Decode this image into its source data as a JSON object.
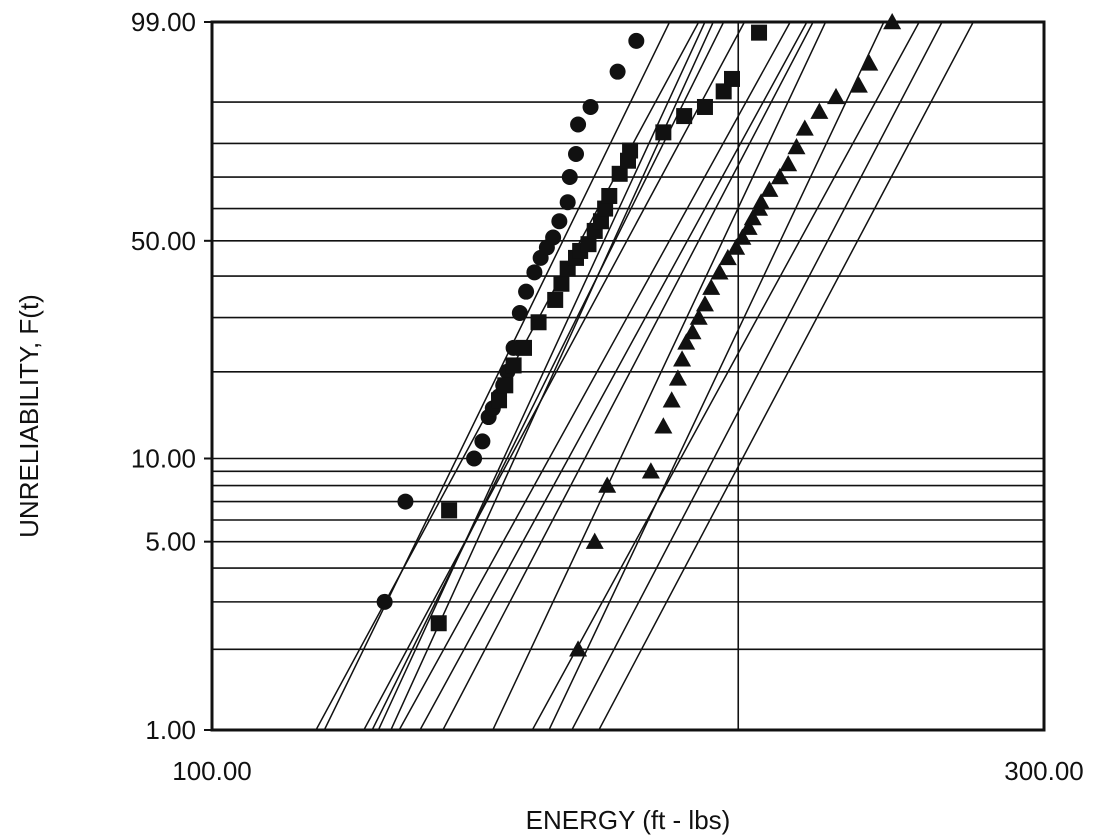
{
  "chart_data": {
    "type": "scatter",
    "title": "",
    "xlabel": "ENERGY (ft - lbs)",
    "ylabel": "UNRELIABILITY, F(t)",
    "x_scale": "linear",
    "y_scale": "weibull probability",
    "xlim": [
      100,
      300
    ],
    "ylim": [
      1,
      99
    ],
    "x_ticks": [
      {
        "value": 100,
        "label": "100.00"
      },
      {
        "value": 300,
        "label": "300.00"
      }
    ],
    "y_ticks": [
      {
        "value": 99,
        "label": "99.00"
      },
      {
        "value": 50,
        "label": "50.00"
      },
      {
        "value": 10,
        "label": "10.00"
      },
      {
        "value": 5,
        "label": "5.00"
      },
      {
        "value": 1,
        "label": "1.00"
      }
    ],
    "grid": {
      "y_values": [
        2,
        3,
        4,
        5,
        6,
        7,
        8,
        9,
        10,
        20,
        30,
        40,
        50,
        60,
        70,
        80,
        90
      ],
      "x_values": [
        226.5
      ]
    },
    "series": [
      {
        "marker": "circle",
        "color": "#111111",
        "x": [
          141.5,
          146.5,
          163.0,
          165.0,
          166.5,
          167.5,
          169.0,
          170.0,
          171.0,
          172.5,
          174.0,
          175.5,
          177.5,
          179.0,
          180.5,
          182.0,
          183.5,
          185.5,
          186.0,
          187.5,
          188.0,
          191.0,
          197.5,
          202.0
        ],
        "y": [
          3.0,
          7.0,
          10.0,
          11.5,
          14.0,
          15.0,
          16.5,
          18.0,
          20.0,
          24.0,
          31.0,
          36.0,
          41.0,
          45.0,
          48.0,
          51.0,
          56.0,
          62.0,
          70.0,
          77.0,
          85.0,
          89.0,
          95.0,
          98.0
        ]
      },
      {
        "marker": "square",
        "color": "#111111",
        "x": [
          154.5,
          157.0,
          169.0,
          170.5,
          172.5,
          175.0,
          178.5,
          182.5,
          184.0,
          185.5,
          187.5,
          188.5,
          190.5,
          192.0,
          193.5,
          194.5,
          195.5,
          198.0,
          200.0,
          200.5,
          208.5,
          213.5,
          218.5,
          223.0,
          225.0,
          231.5
        ],
        "y": [
          2.5,
          6.5,
          16.0,
          18.0,
          21.0,
          24.0,
          29.0,
          34.0,
          38.0,
          42.0,
          45.0,
          47.0,
          49.0,
          53.0,
          56.0,
          60.0,
          64.0,
          71.0,
          75.0,
          78.0,
          83.0,
          87.0,
          89.0,
          92.0,
          94.0,
          98.5
        ]
      },
      {
        "marker": "triangle",
        "color": "#111111",
        "x": [
          188.0,
          192.0,
          195.0,
          205.5,
          208.5,
          210.5,
          212.0,
          213.0,
          214.0,
          215.5,
          217.0,
          218.5,
          220.0,
          222.0,
          224.0,
          226.0,
          227.5,
          229.0,
          230.0,
          231.5,
          232.0,
          234.0,
          236.5,
          238.5,
          240.5,
          242.5,
          246.0,
          250.0,
          255.5,
          258.0,
          263.5
        ],
        "y": [
          2.0,
          5.0,
          8.0,
          9.0,
          13.0,
          16.0,
          19.0,
          22.0,
          25.0,
          27.0,
          30.0,
          33.0,
          37.0,
          41.0,
          45.0,
          48.0,
          51.0,
          54.0,
          57.0,
          60.0,
          62.0,
          66.0,
          70.0,
          74.0,
          79.0,
          84.0,
          88.0,
          91.0,
          93.0,
          96.0,
          99.0
        ]
      }
    ],
    "fit_lines": [
      {
        "x_at_1": 125.0,
        "x_at_99": 217.0
      },
      {
        "x_at_1": 127.0,
        "x_at_99": 210.0
      },
      {
        "x_at_1": 136.5,
        "x_at_99": 228.0
      },
      {
        "x_at_1": 138.5,
        "x_at_99": 223.0
      },
      {
        "x_at_1": 140.0,
        "x_at_99": 218.5
      },
      {
        "x_at_1": 143.0,
        "x_at_99": 220.5
      },
      {
        "x_at_1": 145.0,
        "x_at_99": 239.0
      },
      {
        "x_at_1": 150.0,
        "x_at_99": 243.0
      },
      {
        "x_at_1": 155.5,
        "x_at_99": 244.5
      },
      {
        "x_at_1": 167.5,
        "x_at_99": 247.5
      },
      {
        "x_at_1": 177.0,
        "x_at_99": 270.0
      },
      {
        "x_at_1": 181.0,
        "x_at_99": 261.5
      },
      {
        "x_at_1": 186.5,
        "x_at_99": 275.5
      },
      {
        "x_at_1": 193.0,
        "x_at_99": 283.0
      }
    ]
  }
}
